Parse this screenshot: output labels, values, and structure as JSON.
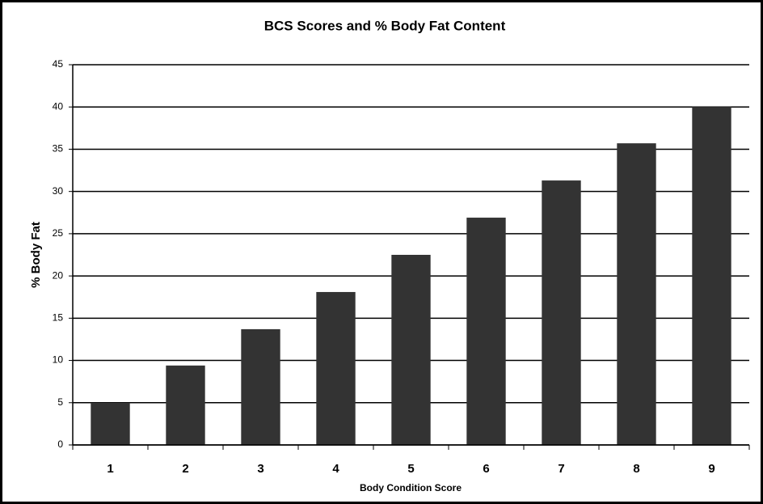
{
  "chart_data": {
    "type": "bar",
    "title": "BCS Scores and % Body Fat Content",
    "x_label": "Body Condition Score",
    "y_label": "% Body Fat",
    "categories": [
      "1",
      "2",
      "3",
      "4",
      "5",
      "6",
      "7",
      "8",
      "9"
    ],
    "values": [
      5,
      9.4,
      13.7,
      18.1,
      22.5,
      26.9,
      31.3,
      35.7,
      40
    ],
    "color": "#333333",
    "ylim": [
      0,
      45
    ],
    "yticks": [
      0,
      5,
      10,
      15,
      20,
      25,
      30,
      35,
      40,
      45
    ],
    "grid": true
  }
}
